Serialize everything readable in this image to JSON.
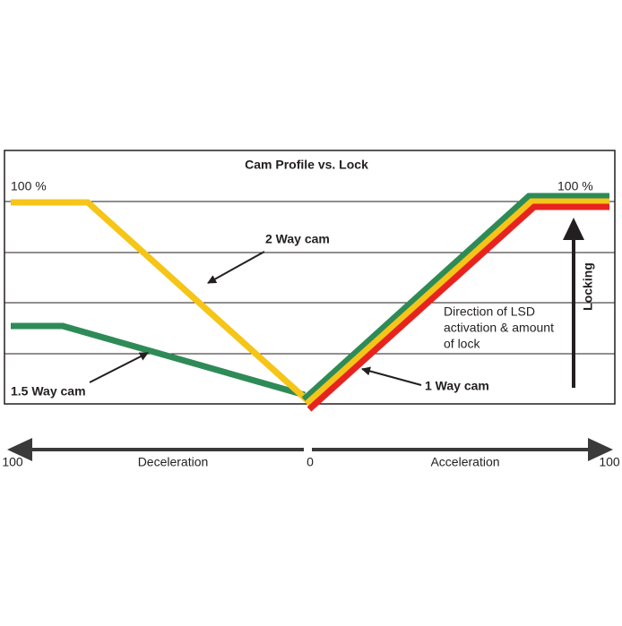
{
  "title": "Cam Profile vs. Lock",
  "max_left": "100 %",
  "max_right": "100 %",
  "labels": {
    "two_way": "2 Way cam",
    "one_five_way": "1.5 Way cam",
    "one_way": "1 Way cam"
  },
  "locking": "Locking",
  "description": [
    "Direction of LSD",
    "activation & amount",
    "of lock"
  ],
  "axis": {
    "left_end": "100",
    "left_label": "Deceleration",
    "center": "0",
    "right_label": "Acceleration",
    "right_end": "100"
  }
}
